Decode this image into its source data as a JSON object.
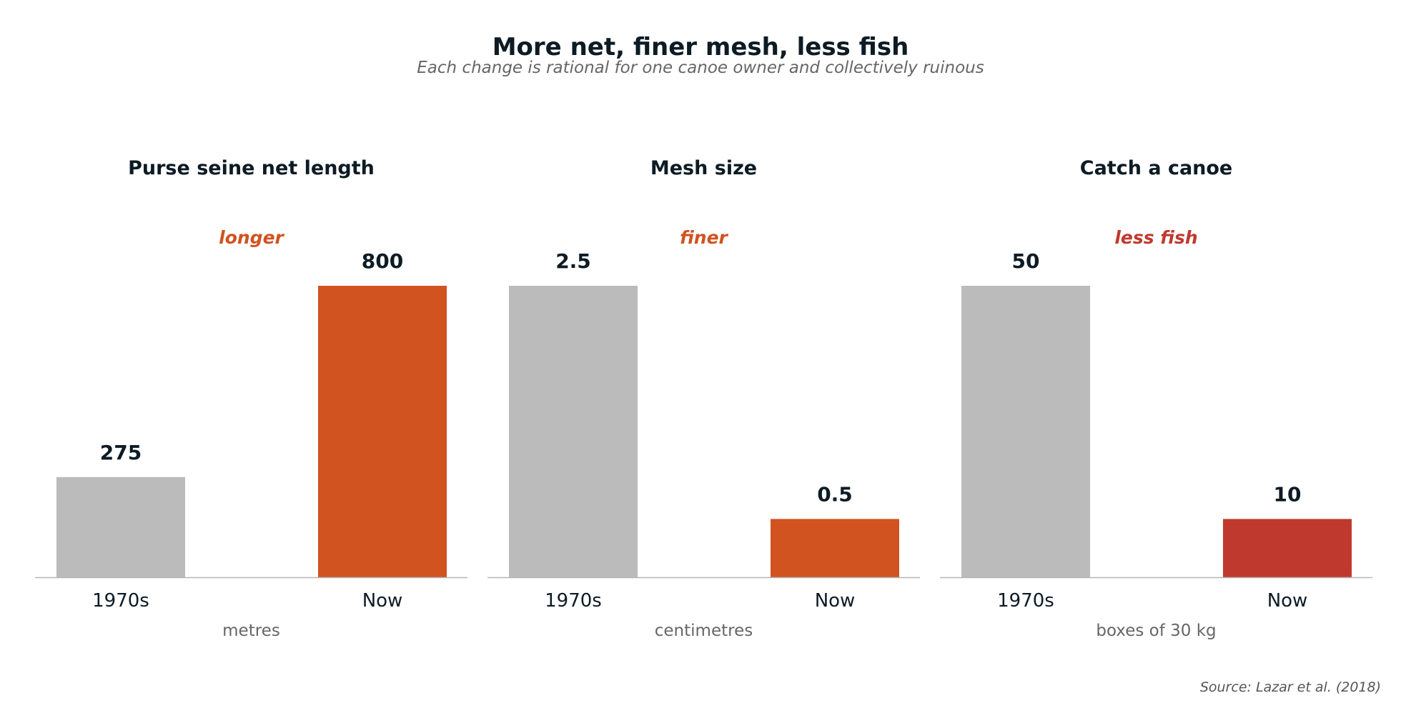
{
  "chart_data": {
    "title": "More net, finer mesh, less fish",
    "subtitle": "Each change is rational for one canoe owner and collectively ruinous",
    "source": "Source: Lazar et al. (2018)",
    "base_color": "#bbbbbb",
    "panels": [
      {
        "type": "bar",
        "title": "Purse seine net length",
        "annotation": "longer",
        "annotation_color": "#d05320",
        "categories": [
          "1970s",
          "Now"
        ],
        "values": [
          275,
          800
        ],
        "value_labels": [
          "275",
          "800"
        ],
        "colors": [
          "#bbbbbb",
          "#d05320"
        ],
        "unit": "metres"
      },
      {
        "type": "bar",
        "title": "Mesh size",
        "annotation": "finer",
        "annotation_color": "#d05320",
        "categories": [
          "1970s",
          "Now"
        ],
        "values": [
          2.5,
          0.5
        ],
        "value_labels": [
          "2.5",
          "0.5"
        ],
        "colors": [
          "#bbbbbb",
          "#d05320"
        ],
        "unit": "centimetres"
      },
      {
        "type": "bar",
        "title": "Catch a canoe",
        "annotation": "less fish",
        "annotation_color": "#c0392f",
        "categories": [
          "1970s",
          "Now"
        ],
        "values": [
          50,
          10
        ],
        "value_labels": [
          "50",
          "10"
        ],
        "colors": [
          "#bbbbbb",
          "#c0392f"
        ],
        "unit": "boxes of 30 kg"
      }
    ]
  }
}
